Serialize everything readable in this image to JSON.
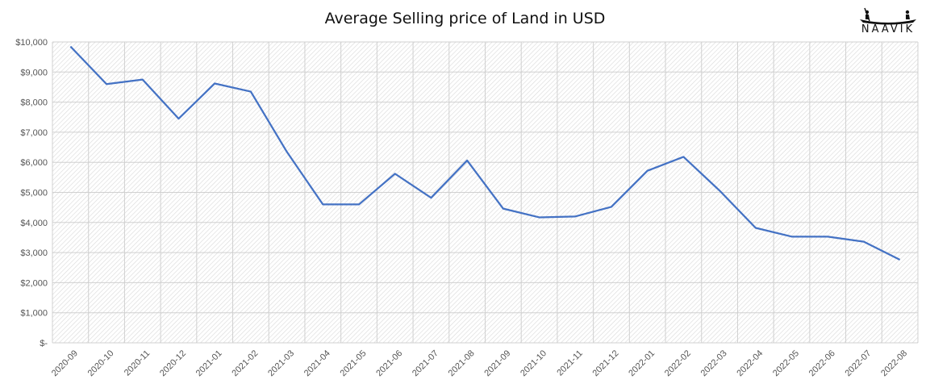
{
  "logo_text": "NAAVIK",
  "chart_data": {
    "type": "line",
    "title": "Average Selling price of Land in USD",
    "xlabel": "",
    "ylabel": "",
    "categories": [
      "2020-09",
      "2020-10",
      "2020-11",
      "2020-12",
      "2021-01",
      "2021-02",
      "2021-03",
      "2021-04",
      "2021-05",
      "2021-06",
      "2021-07",
      "2021-08",
      "2021-09",
      "2021-10",
      "2021-11",
      "2021-12",
      "2022-01",
      "2022-02",
      "2022-03",
      "2022-04",
      "2022-05",
      "2022-06",
      "2022-07",
      "2022-08"
    ],
    "series": [
      {
        "values": [
          9850,
          8600,
          8750,
          7450,
          8620,
          8350,
          6350,
          4600,
          4600,
          5620,
          4820,
          6060,
          4460,
          4170,
          4200,
          4520,
          5720,
          6180,
          5060,
          3820,
          3530,
          3530,
          3360,
          2760
        ],
        "color": "#4472c4"
      }
    ],
    "ylim": [
      0,
      10000
    ],
    "yticks": [
      0,
      1000,
      2000,
      3000,
      4000,
      5000,
      6000,
      7000,
      8000,
      9000,
      10000
    ],
    "ytick_labels": [
      "$-",
      "$1,000",
      "$2,000",
      "$3,000",
      "$4,000",
      "$5,000",
      "$6,000",
      "$7,000",
      "$8,000",
      "$9,000",
      "$10,000"
    ],
    "grid": true
  }
}
